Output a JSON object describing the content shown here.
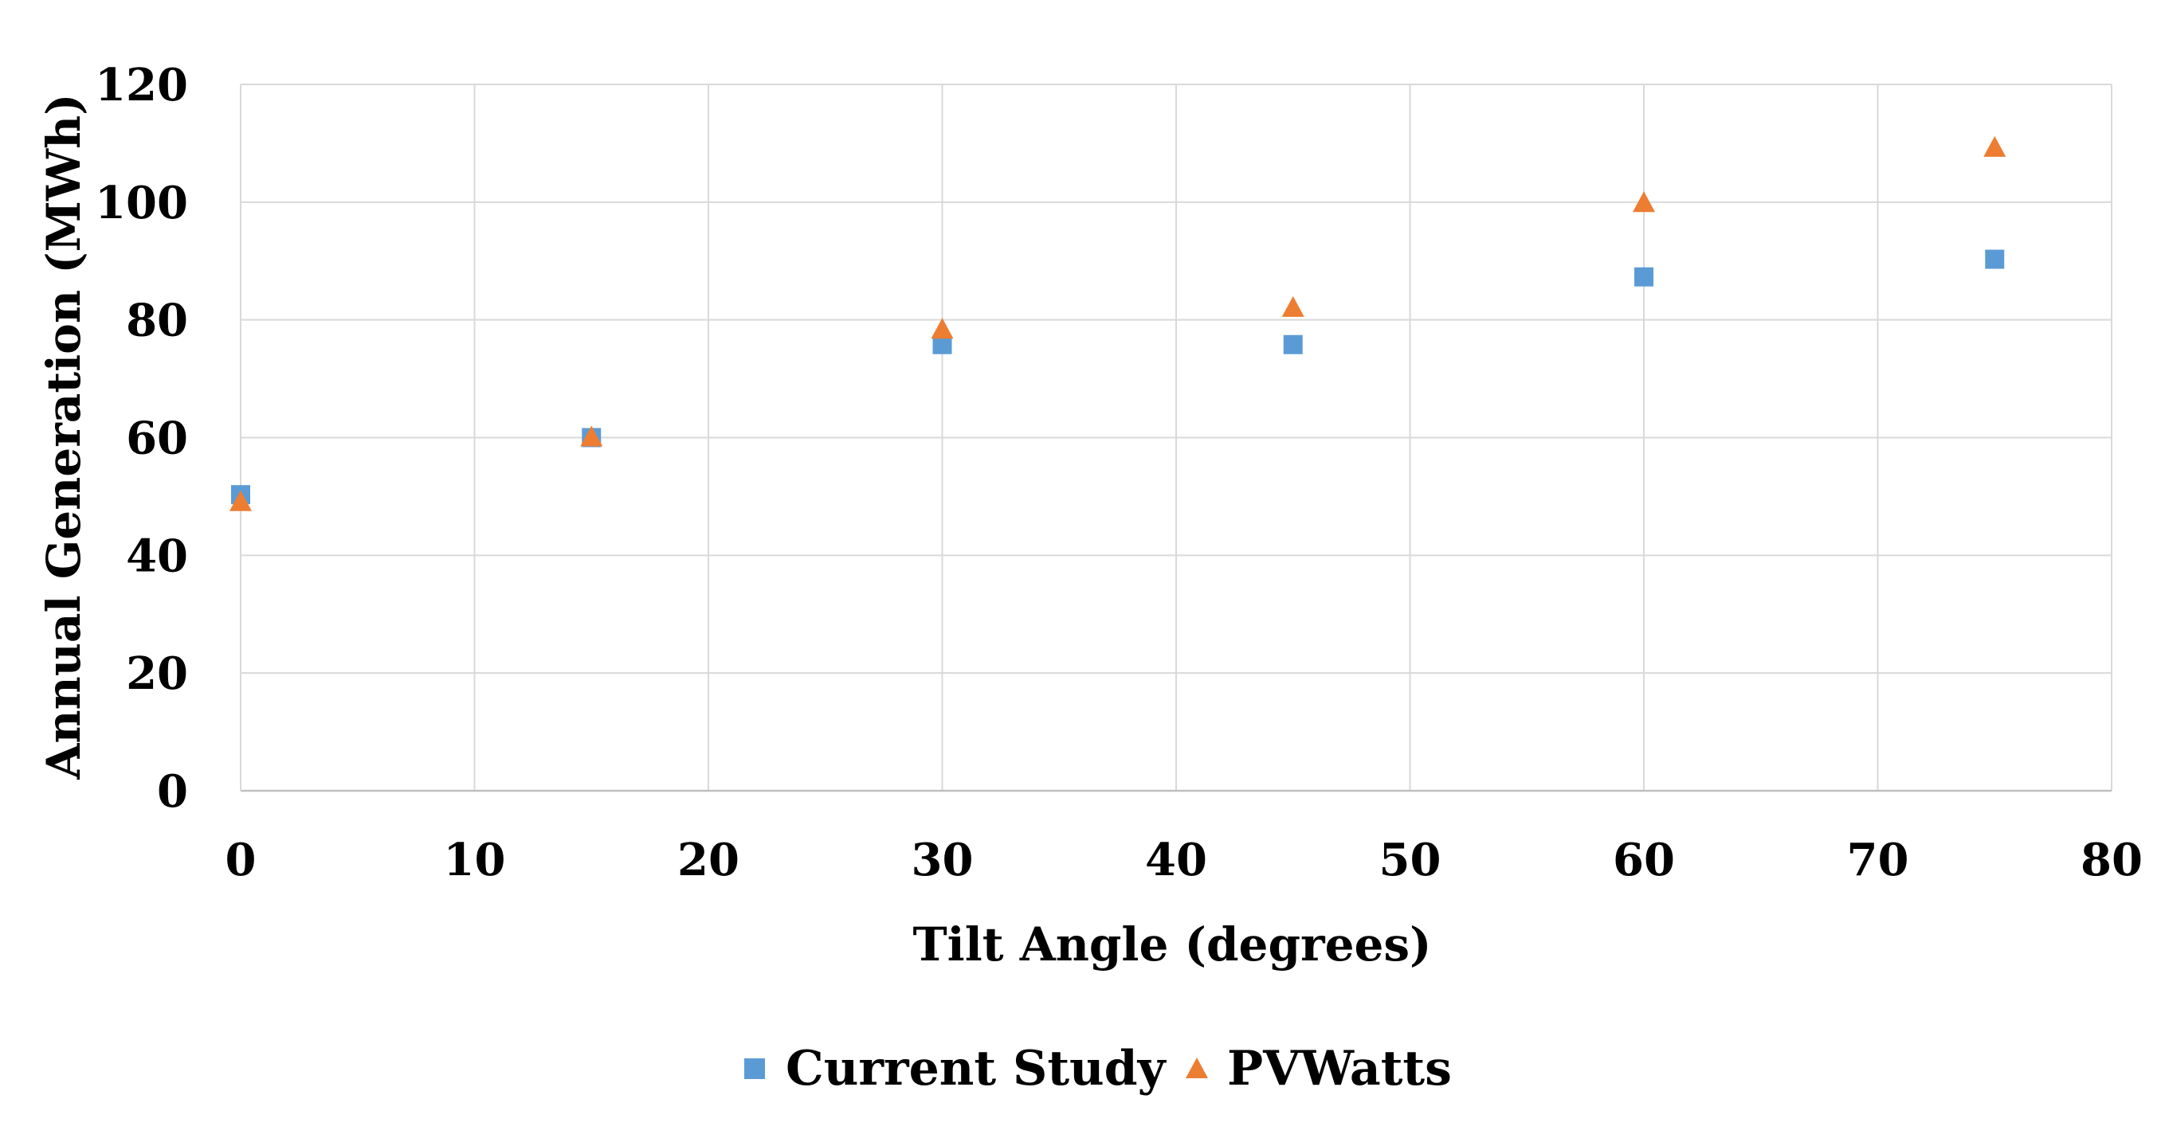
{
  "chart_data": {
    "type": "scatter",
    "title": "",
    "xlabel": "Tilt Angle (degrees)",
    "ylabel": "Annual Generation (MWh)",
    "xlim": [
      0,
      80
    ],
    "ylim": [
      0,
      120
    ],
    "xticks": [
      0,
      10,
      20,
      30,
      40,
      50,
      60,
      70,
      80
    ],
    "yticks": [
      0,
      20,
      40,
      60,
      80,
      100,
      120
    ],
    "x_tick_labels": [
      "0",
      "10",
      "20",
      "30",
      "40",
      "50",
      "60",
      "70",
      "80"
    ],
    "y_tick_labels": [
      "0",
      "20",
      "40",
      "60",
      "80",
      "100",
      "120"
    ],
    "grid": true,
    "legend_position": "bottom",
    "series": [
      {
        "name": "Current Study",
        "marker": "square",
        "color": "#5b9bd5",
        "x": [
          0,
          15,
          30,
          45,
          60,
          75
        ],
        "y": [
          50.3,
          60.0,
          75.8,
          75.8,
          87.3,
          90.3
        ]
      },
      {
        "name": "PVWatts",
        "marker": "triangle",
        "color": "#ed7d31",
        "x": [
          0,
          15,
          30,
          45,
          60,
          75
        ],
        "y": [
          49.0,
          60.0,
          78.3,
          82.0,
          99.8,
          109.2
        ]
      }
    ]
  }
}
